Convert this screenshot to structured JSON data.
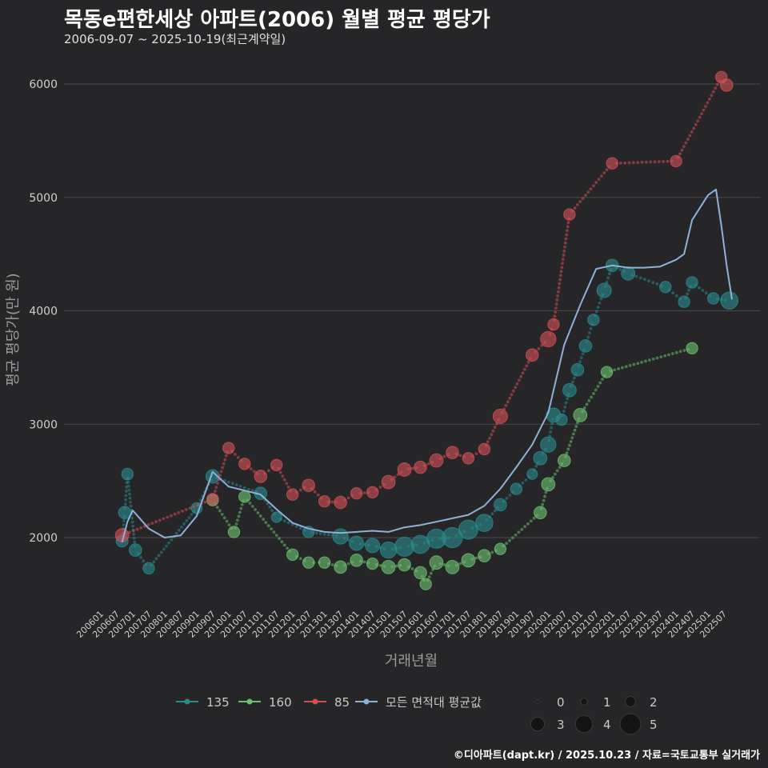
{
  "header": {
    "title": "목동e편한세상 아파트(2006) 월별 평균 평당가",
    "subtitle": "2006-09-07 ~ 2025-10-19(최근계약일)"
  },
  "footer": {
    "credit": "©디아파트(dapt.kr) / 2025.10.23 / 자료=국토교통부 실거래가"
  },
  "chart_data": {
    "type": "line",
    "xlabel": "거래년월",
    "ylabel": "평균 평당가(만 원)",
    "ylim": [
      1400,
      6300
    ],
    "yticks": [
      2000,
      3000,
      4000,
      5000,
      6000
    ],
    "xticks": [
      "200601",
      "200607",
      "200701",
      "200707",
      "200801",
      "200807",
      "200901",
      "200907",
      "201001",
      "201007",
      "201101",
      "201107",
      "201201",
      "201207",
      "201301",
      "201307",
      "201401",
      "201407",
      "201501",
      "201507",
      "201601",
      "201607",
      "201701",
      "201707",
      "201801",
      "201807",
      "201901",
      "201907",
      "202001",
      "202007",
      "202101",
      "202107",
      "202201",
      "202207",
      "202301",
      "202307",
      "202401",
      "202407",
      "202501",
      "202507"
    ],
    "size_legend": {
      "title": "",
      "values": [
        "0",
        "1",
        "2",
        "3",
        "4",
        "5"
      ]
    },
    "series": [
      {
        "name": "135",
        "color": "#2a8a8c",
        "points": [
          [
            "200609",
            1970,
            1.5
          ],
          [
            "200610",
            2220,
            1.6
          ],
          [
            "200611",
            2560,
            1.4
          ],
          [
            "200702",
            1890,
            1.6
          ],
          [
            "200707",
            1730,
            1.4
          ],
          [
            "200901",
            2260,
            1.3
          ],
          [
            "200907",
            2540,
            1.8
          ],
          [
            "201101",
            2390,
            1.6
          ],
          [
            "201107",
            2180,
            1.2
          ],
          [
            "201207",
            2050,
            1.4
          ],
          [
            "201307",
            2010,
            2.2
          ],
          [
            "201401",
            1950,
            2.0
          ],
          [
            "201407",
            1930,
            2.0
          ],
          [
            "201501",
            1890,
            2.4
          ],
          [
            "201507",
            1920,
            3.0
          ],
          [
            "201601",
            1940,
            2.8
          ],
          [
            "201607",
            1990,
            3.0
          ],
          [
            "201701",
            2000,
            3.2
          ],
          [
            "201707",
            2070,
            3.0
          ],
          [
            "201801",
            2130,
            2.6
          ],
          [
            "201807",
            2290,
            1.6
          ],
          [
            "201901",
            2430,
            1.4
          ],
          [
            "201907",
            2560,
            1.2
          ],
          [
            "201910",
            2700,
            1.8
          ],
          [
            "202001",
            2820,
            2.2
          ],
          [
            "202003",
            3080,
            2.0
          ],
          [
            "202006",
            3040,
            1.4
          ],
          [
            "202009",
            3300,
            1.8
          ],
          [
            "202012",
            3480,
            1.6
          ],
          [
            "202103",
            3690,
            1.6
          ],
          [
            "202106",
            3920,
            1.4
          ],
          [
            "202110",
            4180,
            2.0
          ],
          [
            "202201",
            4400,
            1.6
          ],
          [
            "202207",
            4330,
            1.8
          ],
          [
            "202309",
            4210,
            1.4
          ],
          [
            "202404",
            4080,
            1.4
          ],
          [
            "202407",
            4250,
            1.4
          ],
          [
            "202503",
            4110,
            1.4
          ],
          [
            "202509",
            4090,
            2.6
          ]
        ]
      },
      {
        "name": "160",
        "color": "#6cc070",
        "points": [
          [
            "200907",
            2330,
            1.4
          ],
          [
            "201003",
            2050,
            1.4
          ],
          [
            "201007",
            2360,
            1.4
          ],
          [
            "201201",
            1850,
            1.4
          ],
          [
            "201207",
            1780,
            1.4
          ],
          [
            "201301",
            1780,
            1.4
          ],
          [
            "201307",
            1740,
            1.6
          ],
          [
            "201401",
            1800,
            1.6
          ],
          [
            "201407",
            1770,
            1.4
          ],
          [
            "201501",
            1740,
            1.8
          ],
          [
            "201507",
            1760,
            1.6
          ],
          [
            "201601",
            1690,
            1.6
          ],
          [
            "201603",
            1590,
            1.4
          ],
          [
            "201607",
            1780,
            1.8
          ],
          [
            "201701",
            1740,
            1.8
          ],
          [
            "201707",
            1800,
            1.8
          ],
          [
            "201801",
            1840,
            1.6
          ],
          [
            "201807",
            1900,
            1.4
          ],
          [
            "201910",
            2220,
            1.6
          ],
          [
            "202001",
            2470,
            1.8
          ],
          [
            "202007",
            2680,
            1.6
          ],
          [
            "202101",
            3080,
            1.8
          ],
          [
            "202111",
            3460,
            1.4
          ],
          [
            "202407",
            3670,
            1.4
          ]
        ]
      },
      {
        "name": "85",
        "color": "#d05055",
        "points": [
          [
            "200609",
            2020,
            1.8
          ],
          [
            "200907",
            2340,
            1.4
          ],
          [
            "201001",
            2790,
            1.4
          ],
          [
            "201007",
            2650,
            1.4
          ],
          [
            "201101",
            2540,
            1.6
          ],
          [
            "201107",
            2640,
            1.4
          ],
          [
            "201201",
            2380,
            1.4
          ],
          [
            "201207",
            2460,
            1.6
          ],
          [
            "201301",
            2320,
            1.4
          ],
          [
            "201307",
            2310,
            1.6
          ],
          [
            "201401",
            2390,
            1.4
          ],
          [
            "201407",
            2400,
            1.4
          ],
          [
            "201501",
            2490,
            1.8
          ],
          [
            "201507",
            2600,
            1.8
          ],
          [
            "201601",
            2620,
            1.6
          ],
          [
            "201607",
            2680,
            1.8
          ],
          [
            "201701",
            2750,
            1.6
          ],
          [
            "201707",
            2700,
            1.4
          ],
          [
            "201801",
            2780,
            1.4
          ],
          [
            "201807",
            3070,
            2.0
          ],
          [
            "201907",
            3610,
            1.6
          ],
          [
            "202001",
            3750,
            2.2
          ],
          [
            "202003",
            3880,
            1.4
          ],
          [
            "202009",
            4850,
            1.4
          ],
          [
            "202201",
            5300,
            1.4
          ],
          [
            "202401",
            5320,
            1.4
          ],
          [
            "202506",
            6060,
            1.4
          ],
          [
            "202508",
            5990,
            1.6
          ]
        ]
      },
      {
        "name": "모든 면적대 평균값",
        "color": "#8fb0d8",
        "line": [
          [
            "200609",
            1960
          ],
          [
            "200611",
            2140
          ],
          [
            "200701",
            2240
          ],
          [
            "200707",
            2080
          ],
          [
            "200801",
            2000
          ],
          [
            "200807",
            2020
          ],
          [
            "200901",
            2190
          ],
          [
            "200907",
            2580
          ],
          [
            "201001",
            2450
          ],
          [
            "201101",
            2380
          ],
          [
            "201107",
            2250
          ],
          [
            "201201",
            2130
          ],
          [
            "201207",
            2080
          ],
          [
            "201301",
            2050
          ],
          [
            "201307",
            2040
          ],
          [
            "201401",
            2050
          ],
          [
            "201407",
            2060
          ],
          [
            "201501",
            2050
          ],
          [
            "201507",
            2090
          ],
          [
            "201601",
            2110
          ],
          [
            "201607",
            2140
          ],
          [
            "201701",
            2170
          ],
          [
            "201707",
            2200
          ],
          [
            "201801",
            2280
          ],
          [
            "201807",
            2430
          ],
          [
            "201901",
            2620
          ],
          [
            "201907",
            2820
          ],
          [
            "202001",
            3100
          ],
          [
            "202007",
            3700
          ],
          [
            "202101",
            4050
          ],
          [
            "202107",
            4370
          ],
          [
            "202201",
            4400
          ],
          [
            "202207",
            4380
          ],
          [
            "202301",
            4380
          ],
          [
            "202307",
            4390
          ],
          [
            "202401",
            4450
          ],
          [
            "202404",
            4500
          ],
          [
            "202407",
            4800
          ],
          [
            "202501",
            5020
          ],
          [
            "202504",
            5070
          ],
          [
            "202506",
            4750
          ],
          [
            "202508",
            4400
          ],
          [
            "202510",
            4100
          ]
        ]
      }
    ]
  }
}
